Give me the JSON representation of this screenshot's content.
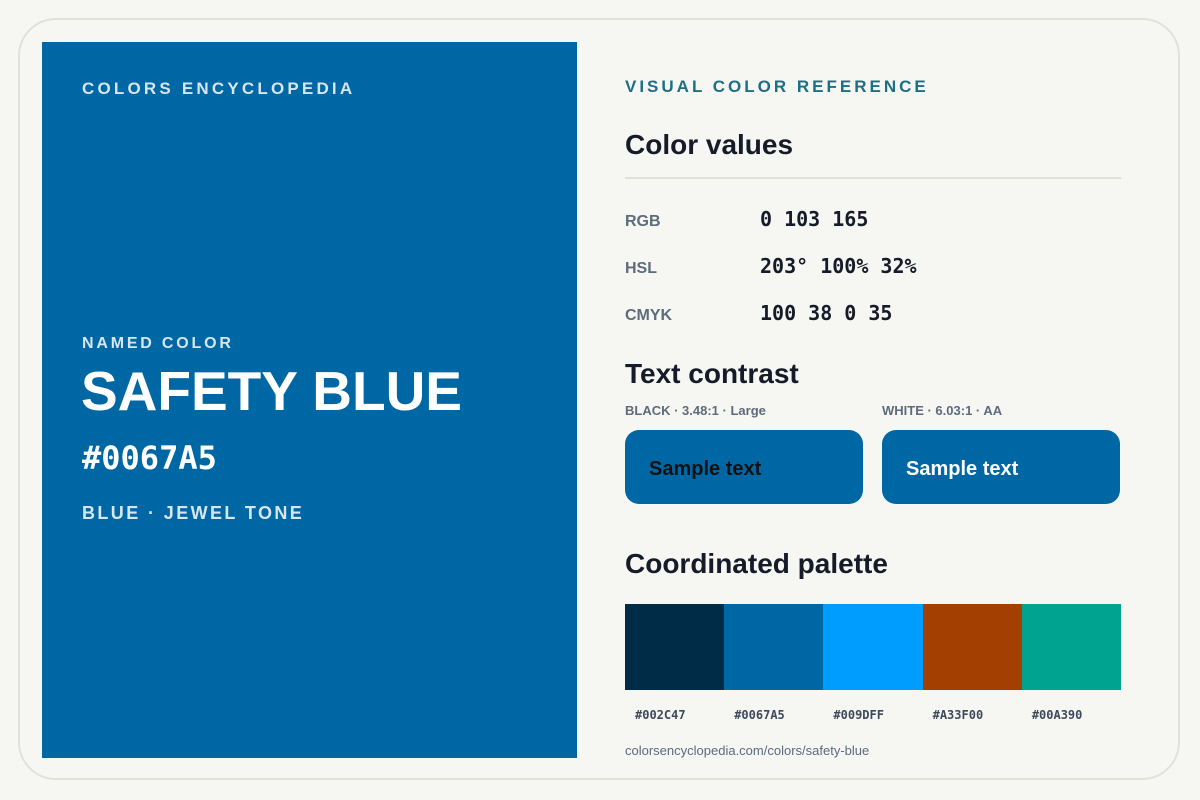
{
  "brand": "COLORS ENCYCLOPEDIA",
  "hero": {
    "background": "#0067A5",
    "named_label": "NAMED COLOR",
    "name": "SAFETY BLUE",
    "hex": "#0067A5",
    "family": "BLUE · JEWEL TONE"
  },
  "reference": {
    "eyebrow": "VISUAL COLOR REFERENCE",
    "values_heading": "Color values",
    "values": [
      {
        "label": "RGB",
        "value": "0 103 165"
      },
      {
        "label": "HSL",
        "value": "203° 100% 32%"
      },
      {
        "label": "CMYK",
        "value": "100 38 0 35"
      }
    ],
    "contrast_heading": "Text contrast",
    "contrast": [
      {
        "label": "BLACK · 3.48:1 · Large",
        "sample_text": "Sample text",
        "text_color": "#111111"
      },
      {
        "label": "WHITE · 6.03:1 · AA",
        "sample_text": "Sample text",
        "text_color": "#FFFFFF"
      }
    ],
    "palette_heading": "Coordinated palette",
    "palette": [
      {
        "hex": "#002C47"
      },
      {
        "hex": "#0067A5"
      },
      {
        "hex": "#009DFF"
      },
      {
        "hex": "#A33F00"
      },
      {
        "hex": "#00A390"
      }
    ],
    "url": "colorsencyclopedia.com/colors/safety-blue"
  }
}
